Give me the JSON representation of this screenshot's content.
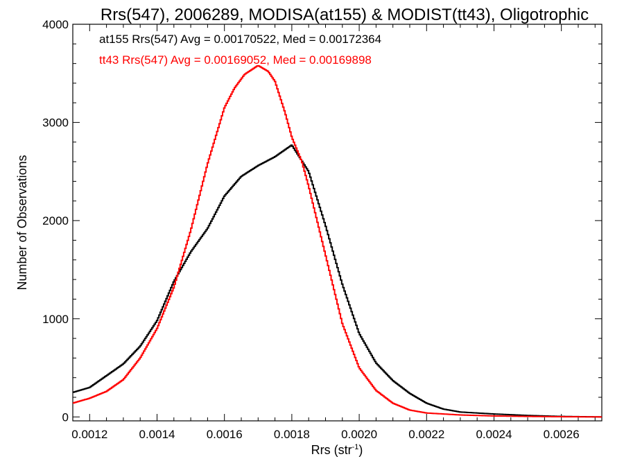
{
  "chart_data": {
    "type": "line",
    "title": "Rrs(547), 2006289, MODISA(at155) & MODIST(tt43), Oligotrophic",
    "xlabel": {
      "main": "Rrs (str",
      "sup": "-1",
      "close": ")"
    },
    "ylabel": "Number of Observations",
    "xlim": [
      0.00115,
      0.00272
    ],
    "ylim": [
      -40,
      4000
    ],
    "x_ticks": [
      0.0012,
      0.0014,
      0.0016,
      0.0018,
      0.002,
      0.0022,
      0.0024,
      0.0026
    ],
    "x_tick_labels": [
      "0.0012",
      "0.0014",
      "0.0016",
      "0.0018",
      "0.0020",
      "0.0022",
      "0.0024",
      "0.0026"
    ],
    "y_ticks": [
      0,
      1000,
      2000,
      3000,
      4000
    ],
    "y_tick_labels": [
      "0",
      "1000",
      "2000",
      "3000",
      "4000"
    ],
    "grid": false,
    "legend_position": "top-left",
    "series": [
      {
        "name": "at155 Rrs(547) Avg = 0.00170522, Med = 0.00172364",
        "color": "#000000",
        "style": "step",
        "points": [
          [
            0.00115,
            250
          ],
          [
            0.0012,
            300
          ],
          [
            0.00125,
            420
          ],
          [
            0.0013,
            540
          ],
          [
            0.00135,
            720
          ],
          [
            0.0014,
            980
          ],
          [
            0.00145,
            1380
          ],
          [
            0.0015,
            1680
          ],
          [
            0.00155,
            1920
          ],
          [
            0.0016,
            2250
          ],
          [
            0.00165,
            2450
          ],
          [
            0.0017,
            2560
          ],
          [
            0.00175,
            2650
          ],
          [
            0.0018,
            2770
          ],
          [
            0.00185,
            2500
          ],
          [
            0.0019,
            1950
          ],
          [
            0.00195,
            1350
          ],
          [
            0.002,
            850
          ],
          [
            0.00205,
            550
          ],
          [
            0.0021,
            370
          ],
          [
            0.00215,
            240
          ],
          [
            0.0022,
            140
          ],
          [
            0.00225,
            80
          ],
          [
            0.0023,
            50
          ],
          [
            0.0024,
            30
          ],
          [
            0.0025,
            15
          ],
          [
            0.0026,
            5
          ],
          [
            0.00272,
            0
          ]
        ]
      },
      {
        "name": "tt43 Rrs(547) Avg = 0.00169052, Med = 0.00169898",
        "color": "#ff0000",
        "style": "step",
        "points": [
          [
            0.00115,
            140
          ],
          [
            0.0012,
            190
          ],
          [
            0.00125,
            260
          ],
          [
            0.0013,
            380
          ],
          [
            0.00135,
            600
          ],
          [
            0.0014,
            900
          ],
          [
            0.00145,
            1320
          ],
          [
            0.0015,
            1900
          ],
          [
            0.00155,
            2580
          ],
          [
            0.0016,
            3150
          ],
          [
            0.00163,
            3350
          ],
          [
            0.00166,
            3490
          ],
          [
            0.0017,
            3580
          ],
          [
            0.00173,
            3520
          ],
          [
            0.00175,
            3420
          ],
          [
            0.00178,
            3100
          ],
          [
            0.0018,
            2850
          ],
          [
            0.00183,
            2600
          ],
          [
            0.00185,
            2350
          ],
          [
            0.0019,
            1650
          ],
          [
            0.00195,
            950
          ],
          [
            0.002,
            500
          ],
          [
            0.00205,
            270
          ],
          [
            0.0021,
            140
          ],
          [
            0.00215,
            70
          ],
          [
            0.0022,
            40
          ],
          [
            0.0023,
            20
          ],
          [
            0.0024,
            10
          ],
          [
            0.0025,
            5
          ],
          [
            0.0026,
            2
          ],
          [
            0.00272,
            0
          ]
        ]
      }
    ]
  }
}
